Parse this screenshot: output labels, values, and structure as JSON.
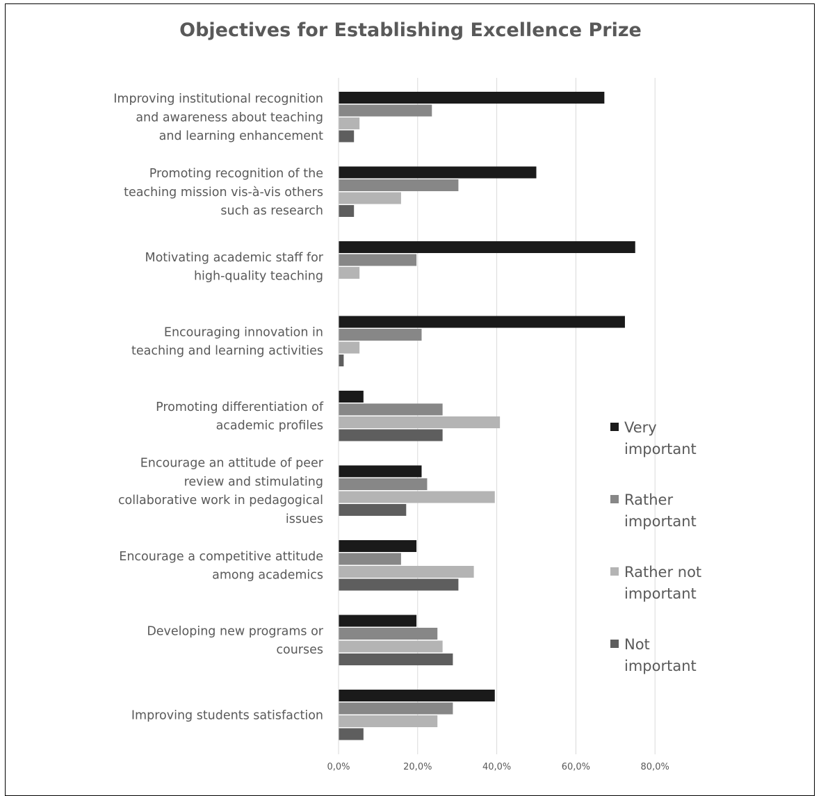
{
  "chart_data": {
    "type": "bar",
    "orientation": "horizontal",
    "title": "Objectives for Establishing Excellence Prize",
    "categories": [
      "Improving institutional recognition and awareness about teaching and learning enhancement",
      "Promoting recognition of the teaching mission vis-à-vis others such as research",
      "Motivating academic staff for high-quality teaching",
      "Encouraging innovation in teaching and learning activities",
      "Promoting differentiation of academic profiles",
      "Encourage an attitude of peer review and stimulating collaborative work in pedagogical issues",
      "Encourage a competitive attitude among academics",
      "Developing new programs or courses",
      "Improving students satisfaction"
    ],
    "category_label_lines": [
      [
        "Improving institutional recognition",
        "and awareness about teaching",
        "and learning enhancement"
      ],
      [
        "Promoting recognition of the",
        "teaching mission vis-à-vis others",
        "such as research"
      ],
      [
        "Motivating academic staff for",
        "high-quality teaching"
      ],
      [
        "Encouraging innovation in",
        "teaching and learning activities"
      ],
      [
        "Promoting differentiation of",
        "academic profiles"
      ],
      [
        "Encourage an attitude of peer",
        "review and stimulating",
        "collaborative work in pedagogical",
        "issues"
      ],
      [
        "Encourage a competitive attitude",
        "among academics"
      ],
      [
        "Developing new programs or",
        "courses"
      ],
      [
        "Improving students satisfaction"
      ]
    ],
    "series": [
      {
        "name": "Very important",
        "color": "#1a1a1a",
        "values": [
          67.2,
          50.0,
          75.0,
          72.4,
          6.3,
          21.0,
          19.7,
          19.7,
          39.5
        ]
      },
      {
        "name": "Rather important",
        "color": "#878787",
        "values": [
          23.6,
          30.3,
          19.7,
          21.0,
          26.3,
          22.4,
          15.8,
          25.0,
          28.9
        ]
      },
      {
        "name": "Rather not important",
        "color": "#b4b4b4",
        "values": [
          5.3,
          15.8,
          5.3,
          5.3,
          40.8,
          39.5,
          34.2,
          26.3,
          25.0
        ]
      },
      {
        "name": "Not important",
        "color": "#5e5e5e",
        "values": [
          3.9,
          3.9,
          0,
          1.3,
          26.3,
          17.1,
          30.3,
          28.9,
          6.3
        ]
      }
    ],
    "legend_label_lines": [
      [
        "Very",
        "important"
      ],
      [
        "Rather",
        "important"
      ],
      [
        "Rather not",
        "important"
      ],
      [
        "Not",
        "important"
      ]
    ],
    "xlim": [
      0,
      80
    ],
    "xticks": [
      0,
      20,
      40,
      60,
      80
    ],
    "xtick_labels": [
      "0,0%",
      "20,0%",
      "40,0%",
      "60,0%",
      "80,0%"
    ],
    "xlabel": "",
    "ylabel": "",
    "grid": "vertical",
    "legend_position": "right"
  }
}
